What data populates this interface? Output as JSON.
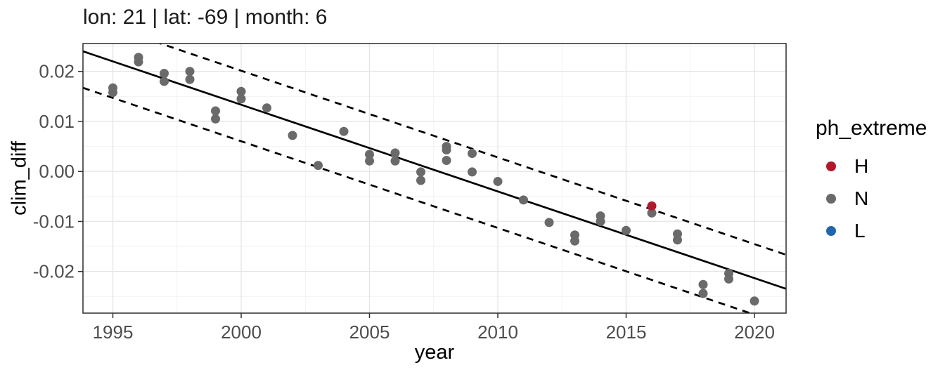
{
  "title": "lon: 21 | lat: -69 | month: 6",
  "legend": {
    "title": "ph_extreme",
    "items": [
      {
        "label": "H",
        "color": "#b2182b"
      },
      {
        "label": "N",
        "color": "#6a6a6a"
      },
      {
        "label": "L",
        "color": "#2166ac"
      }
    ]
  },
  "colors": {
    "grid_major": "#e6e6e6",
    "grid_minor": "#f2f2f2",
    "panel_border": "#2b2b2b",
    "axis_text": "#4d4d4d",
    "line": "#000000"
  },
  "chart_data": {
    "type": "scatter",
    "title": "lon: 21 | lat: -69 | month: 6",
    "xlabel": "year",
    "ylabel": "clim_diff",
    "xlim": [
      1993.8,
      2021.2
    ],
    "ylim": [
      -0.0283,
      0.0256
    ],
    "grid": true,
    "legend_position": "right",
    "x_axis": {
      "ticks": [
        {
          "label": "1995",
          "value": 1995
        },
        {
          "label": "2000",
          "value": 2000
        },
        {
          "label": "2005",
          "value": 2005
        },
        {
          "label": "2010",
          "value": 2010
        },
        {
          "label": "2015",
          "value": 2015
        },
        {
          "label": "2020",
          "value": 2020
        }
      ],
      "minor": [
        1997.5,
        2002.5,
        2007.5,
        2012.5,
        2017.5
      ]
    },
    "y_axis": {
      "ticks": [
        {
          "label": "0.02",
          "value": 0.02
        },
        {
          "label": "0.01",
          "value": 0.01
        },
        {
          "label": "0.00",
          "value": 0.0
        },
        {
          "label": "-0.01",
          "value": -0.01
        },
        {
          "label": "-0.02",
          "value": -0.02
        }
      ],
      "minor": [
        0.025,
        0.015,
        0.005,
        -0.005,
        -0.015,
        -0.025
      ]
    },
    "series": [
      {
        "name": "H",
        "color": "#b2182b",
        "points": [
          {
            "x": 2016,
            "y": -0.0069
          }
        ]
      },
      {
        "name": "N",
        "color": "#6a6a6a",
        "points": [
          {
            "x": 1995,
            "y": 0.0167
          },
          {
            "x": 1995,
            "y": 0.0158
          },
          {
            "x": 1996,
            "y": 0.0228
          },
          {
            "x": 1996,
            "y": 0.0219
          },
          {
            "x": 1997,
            "y": 0.0196
          },
          {
            "x": 1997,
            "y": 0.018
          },
          {
            "x": 1998,
            "y": 0.02
          },
          {
            "x": 1998,
            "y": 0.0184
          },
          {
            "x": 1999,
            "y": 0.0121
          },
          {
            "x": 1999,
            "y": 0.0105
          },
          {
            "x": 2000,
            "y": 0.016
          },
          {
            "x": 2000,
            "y": 0.0145
          },
          {
            "x": 2001,
            "y": 0.0127
          },
          {
            "x": 2002,
            "y": 0.0072
          },
          {
            "x": 2003,
            "y": 0.0012
          },
          {
            "x": 2004,
            "y": 0.008
          },
          {
            "x": 2005,
            "y": 0.0034
          },
          {
            "x": 2005,
            "y": 0.0021
          },
          {
            "x": 2006,
            "y": 0.0037
          },
          {
            "x": 2006,
            "y": 0.0021
          },
          {
            "x": 2007,
            "y": -0.0001
          },
          {
            "x": 2007,
            "y": -0.0018
          },
          {
            "x": 2008,
            "y": 0.005
          },
          {
            "x": 2008,
            "y": 0.0043
          },
          {
            "x": 2008,
            "y": 0.0022
          },
          {
            "x": 2009,
            "y": 0.0036
          },
          {
            "x": 2009,
            "y": -0.0001
          },
          {
            "x": 2010,
            "y": -0.002
          },
          {
            "x": 2011,
            "y": -0.0057
          },
          {
            "x": 2012,
            "y": -0.0102
          },
          {
            "x": 2013,
            "y": -0.0127
          },
          {
            "x": 2013,
            "y": -0.0139
          },
          {
            "x": 2014,
            "y": -0.0089
          },
          {
            "x": 2014,
            "y": -0.01
          },
          {
            "x": 2015,
            "y": -0.0118
          },
          {
            "x": 2016,
            "y": -0.0083
          },
          {
            "x": 2017,
            "y": -0.0125
          },
          {
            "x": 2017,
            "y": -0.0137
          },
          {
            "x": 2018,
            "y": -0.0226
          },
          {
            "x": 2018,
            "y": -0.0244
          },
          {
            "x": 2019,
            "y": -0.0204
          },
          {
            "x": 2019,
            "y": -0.0215
          },
          {
            "x": 2020,
            "y": -0.0259
          }
        ]
      },
      {
        "name": "L",
        "color": "#2166ac",
        "points": []
      }
    ],
    "trend_line": {
      "type": "linear",
      "value_at_1995": 0.022,
      "slope_per_year": -0.001733
    },
    "band": {
      "style": "dashed",
      "upper_offset": 0.0068,
      "lower_offset": 0.0073
    }
  }
}
